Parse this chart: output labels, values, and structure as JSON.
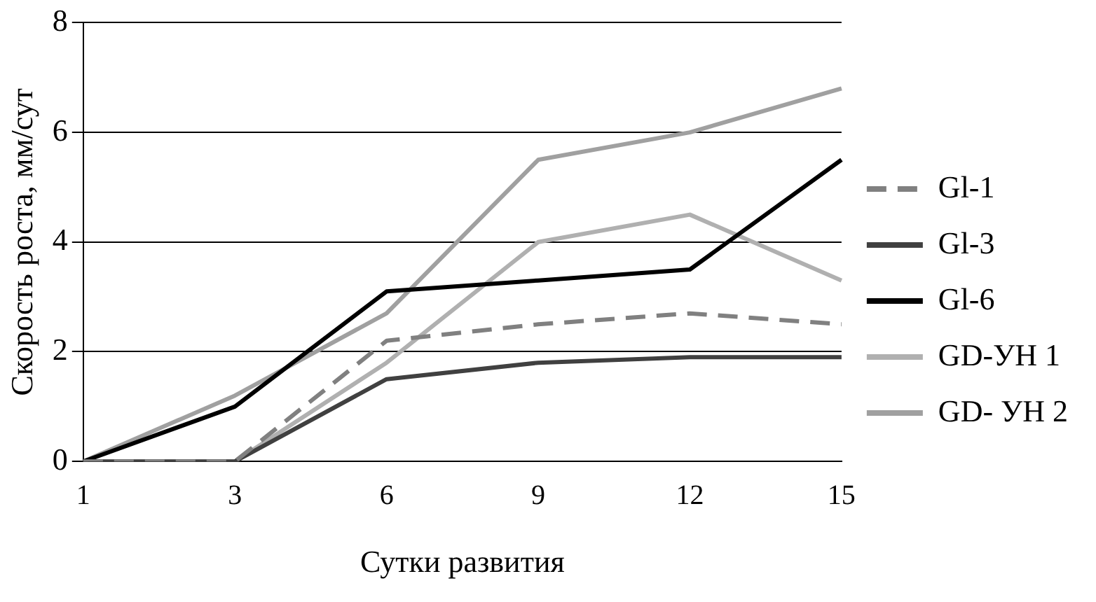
{
  "chart_data": {
    "type": "line",
    "xlabel": "Сутки развития",
    "ylabel": "Скорость роста, мм/сут",
    "categories": [
      "1",
      "3",
      "6",
      "9",
      "12",
      "15"
    ],
    "ylim": [
      0,
      8
    ],
    "yticks": [
      0,
      2,
      4,
      6,
      8
    ],
    "grid": "y",
    "legend": "right",
    "marker": "none",
    "series": [
      {
        "name": "Gl-1",
        "color": "#808080",
        "line_style": "dashed",
        "values": [
          0,
          0,
          2.2,
          2.5,
          2.7,
          2.5
        ]
      },
      {
        "name": "Gl-3",
        "color": "#404040",
        "values": [
          0,
          0,
          1.5,
          1.8,
          1.9,
          1.9
        ]
      },
      {
        "name": "Gl-6",
        "color": "#000000",
        "values": [
          0,
          1,
          3.1,
          3.3,
          3.5,
          5.5
        ]
      },
      {
        "name": "GD-УН 1",
        "color": "#b0b0b0",
        "values": [
          0,
          0,
          1.8,
          4.0,
          4.5,
          3.3
        ]
      },
      {
        "name": "GD- УН 2",
        "color": "#a0a0a0",
        "values": [
          0,
          1.2,
          2.7,
          5.5,
          6.0,
          6.8
        ]
      }
    ]
  }
}
